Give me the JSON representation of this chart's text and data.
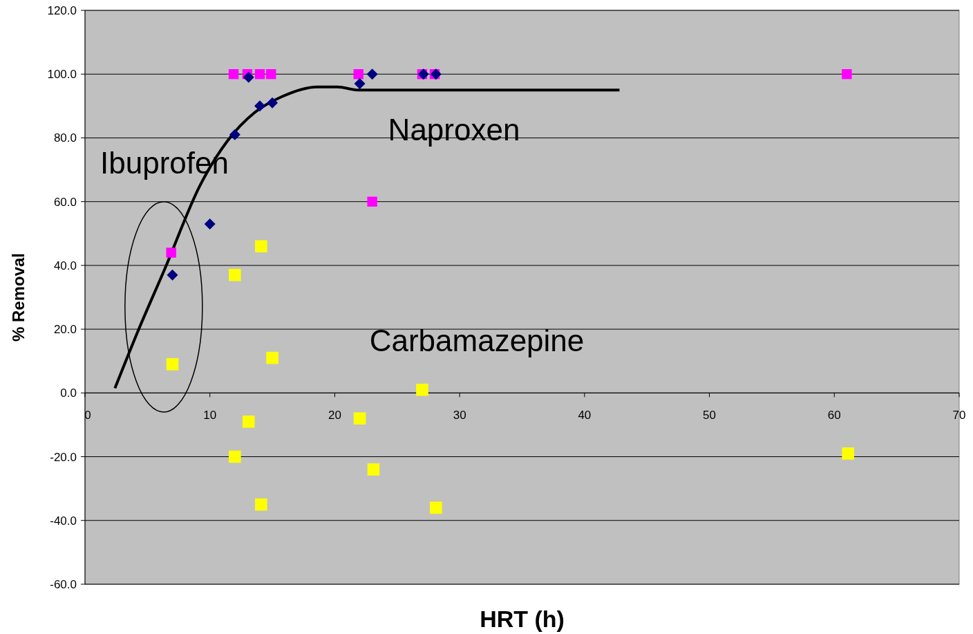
{
  "chart_data": {
    "type": "scatter",
    "xlabel": "HRT (h)",
    "ylabel": "% Removal",
    "xlim": [
      0,
      70
    ],
    "xticks": [
      0,
      10,
      20,
      30,
      40,
      50,
      60,
      70
    ],
    "ylim": [
      -60,
      120
    ],
    "yticks": [
      {
        "value": -60,
        "label": "-60.0"
      },
      {
        "value": -40,
        "label": "-40.0"
      },
      {
        "value": -20,
        "label": "-20.0"
      },
      {
        "value": 0,
        "label": "0.0"
      },
      {
        "value": 20,
        "label": "20.0"
      },
      {
        "value": 40,
        "label": "40.0"
      },
      {
        "value": 60,
        "label": "60.0"
      },
      {
        "value": 80,
        "label": "80.0"
      },
      {
        "value": 100,
        "label": "100.0"
      },
      {
        "value": 120,
        "label": "120.0"
      }
    ],
    "grid": "y",
    "series": [
      {
        "marker": "diamond",
        "color": "#000080",
        "x": [
          7,
          10,
          12,
          13.1,
          14,
          15,
          22,
          23,
          27.1,
          28.1
        ],
        "values": [
          37,
          53,
          81,
          99,
          90,
          91,
          97,
          100,
          100,
          100
        ]
      },
      {
        "marker": "square",
        "color": "#ff00ff",
        "x": [
          6.9,
          11.9,
          13,
          14,
          14.9,
          21.9,
          23,
          27,
          28,
          61
        ],
        "values": [
          44,
          100,
          100,
          100,
          100,
          100,
          60,
          100,
          100,
          100
        ]
      },
      {
        "marker": "square",
        "color": "#ffff00",
        "x": [
          7,
          12,
          14.1,
          15,
          13.1,
          12,
          14.1,
          22,
          27,
          23.1,
          28.1,
          61.1
        ],
        "values": [
          9,
          37,
          46,
          11,
          -9,
          -20,
          -35,
          -8,
          1,
          -24,
          -36,
          -19
        ]
      },
      {
        "type": "line",
        "marker": "none",
        "color": "#000000",
        "x": [
          2.4,
          4.2,
          6.4,
          9.2,
          11.4,
          13.6,
          15.8,
          18.6,
          20.2,
          21.9,
          26.3,
          42.8
        ],
        "values": [
          1.5,
          19,
          39,
          65,
          79,
          88,
          93,
          96,
          96,
          95,
          95,
          95
        ]
      }
    ],
    "annotations": [
      "Ibuprofen",
      "Naproxen",
      "Carbamazepine"
    ]
  }
}
